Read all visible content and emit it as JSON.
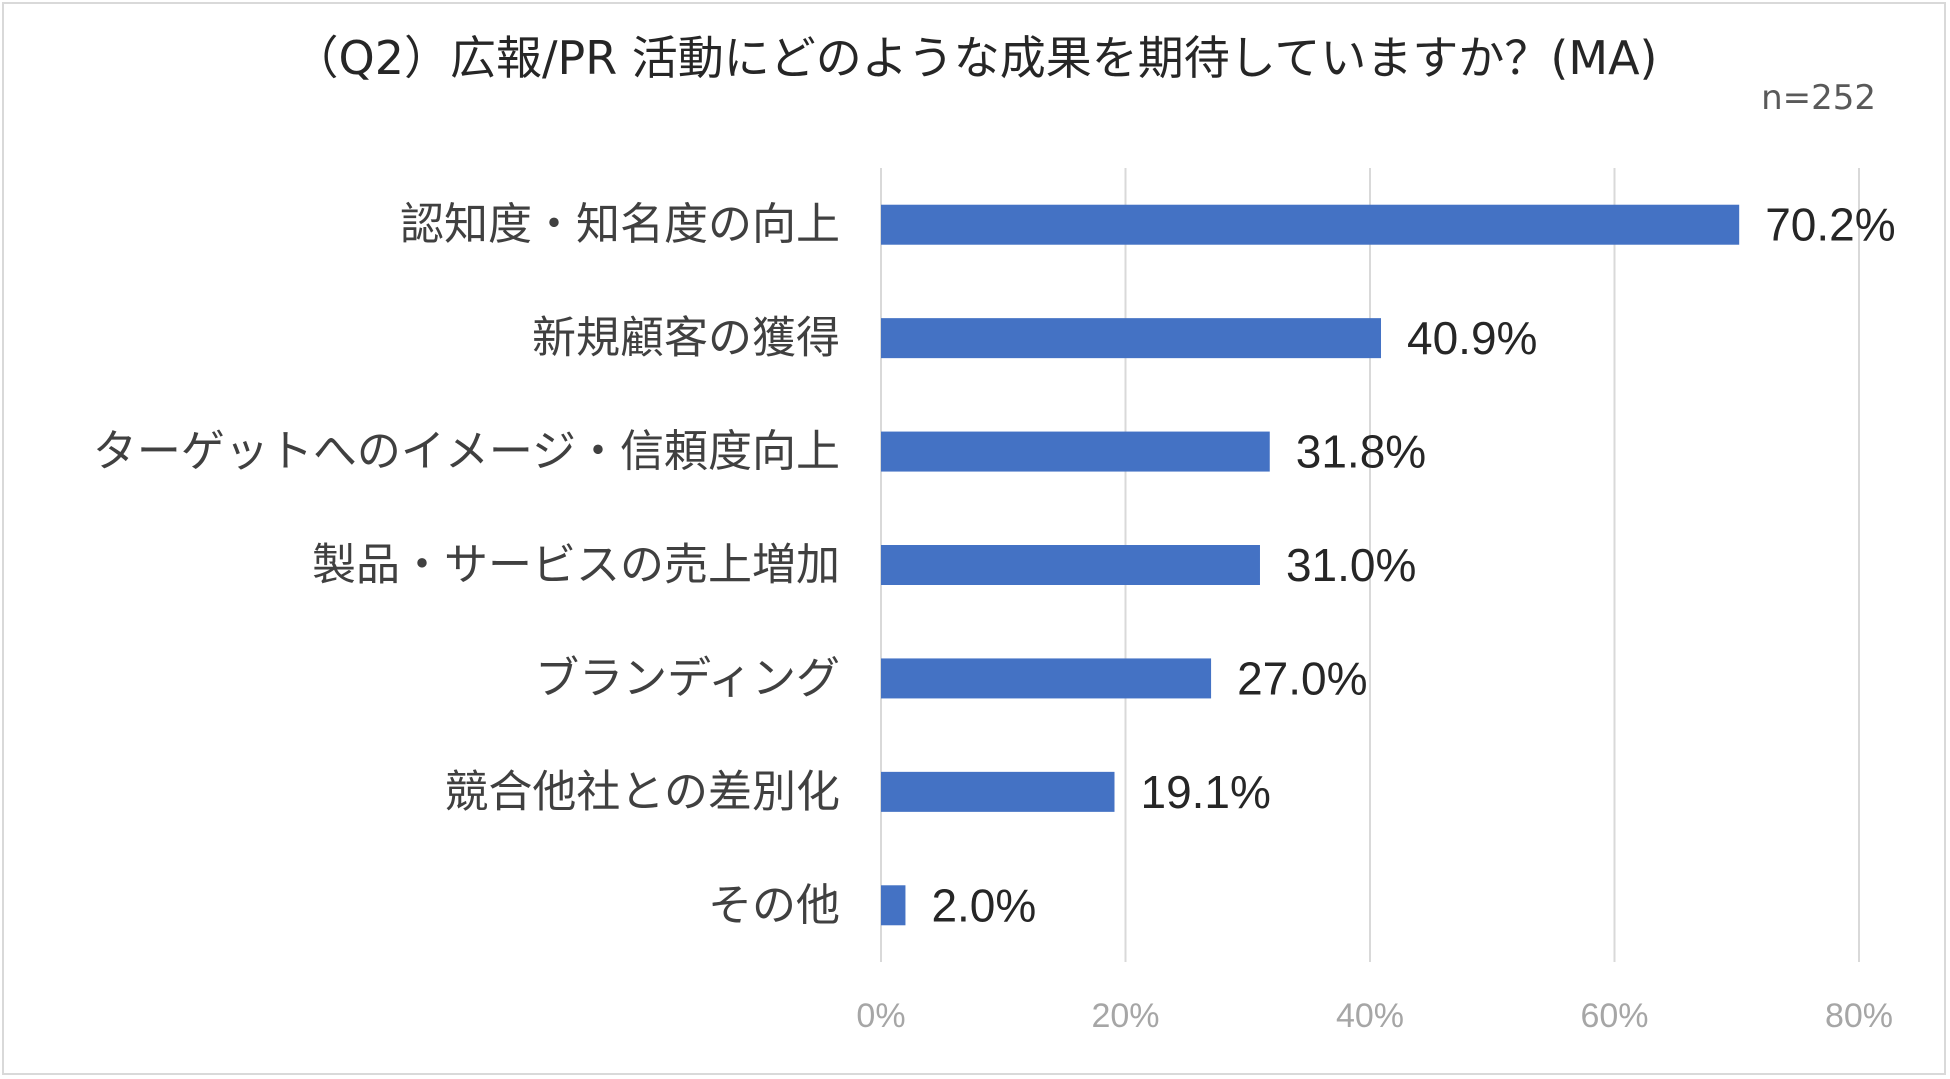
{
  "chart_data": {
    "type": "bar",
    "orientation": "horizontal",
    "title": "（Q2）広報/PR 活動にどのような成果を期待していますか？(MA)",
    "note": "n=252",
    "categories": [
      "認知度・知名度の向上",
      "新規顧客の獲得",
      "ターゲットへのイメージ・信頼度向上",
      "製品・サービスの売上増加",
      "ブランディング",
      "競合他社との差別化",
      "その他"
    ],
    "values": [
      70.2,
      40.9,
      31.8,
      31.0,
      27.0,
      19.1,
      2.0
    ],
    "data_labels": [
      "70.2%",
      "40.9%",
      "31.8%",
      "31.0%",
      "27.0%",
      "19.1%",
      "2.0%"
    ],
    "x_ticks": [
      "0%",
      "20%",
      "40%",
      "60%",
      "80%"
    ],
    "xlim": [
      0,
      80
    ],
    "grid": true,
    "bar_color": "#4472C4",
    "grid_color": "#d9d9d9"
  }
}
